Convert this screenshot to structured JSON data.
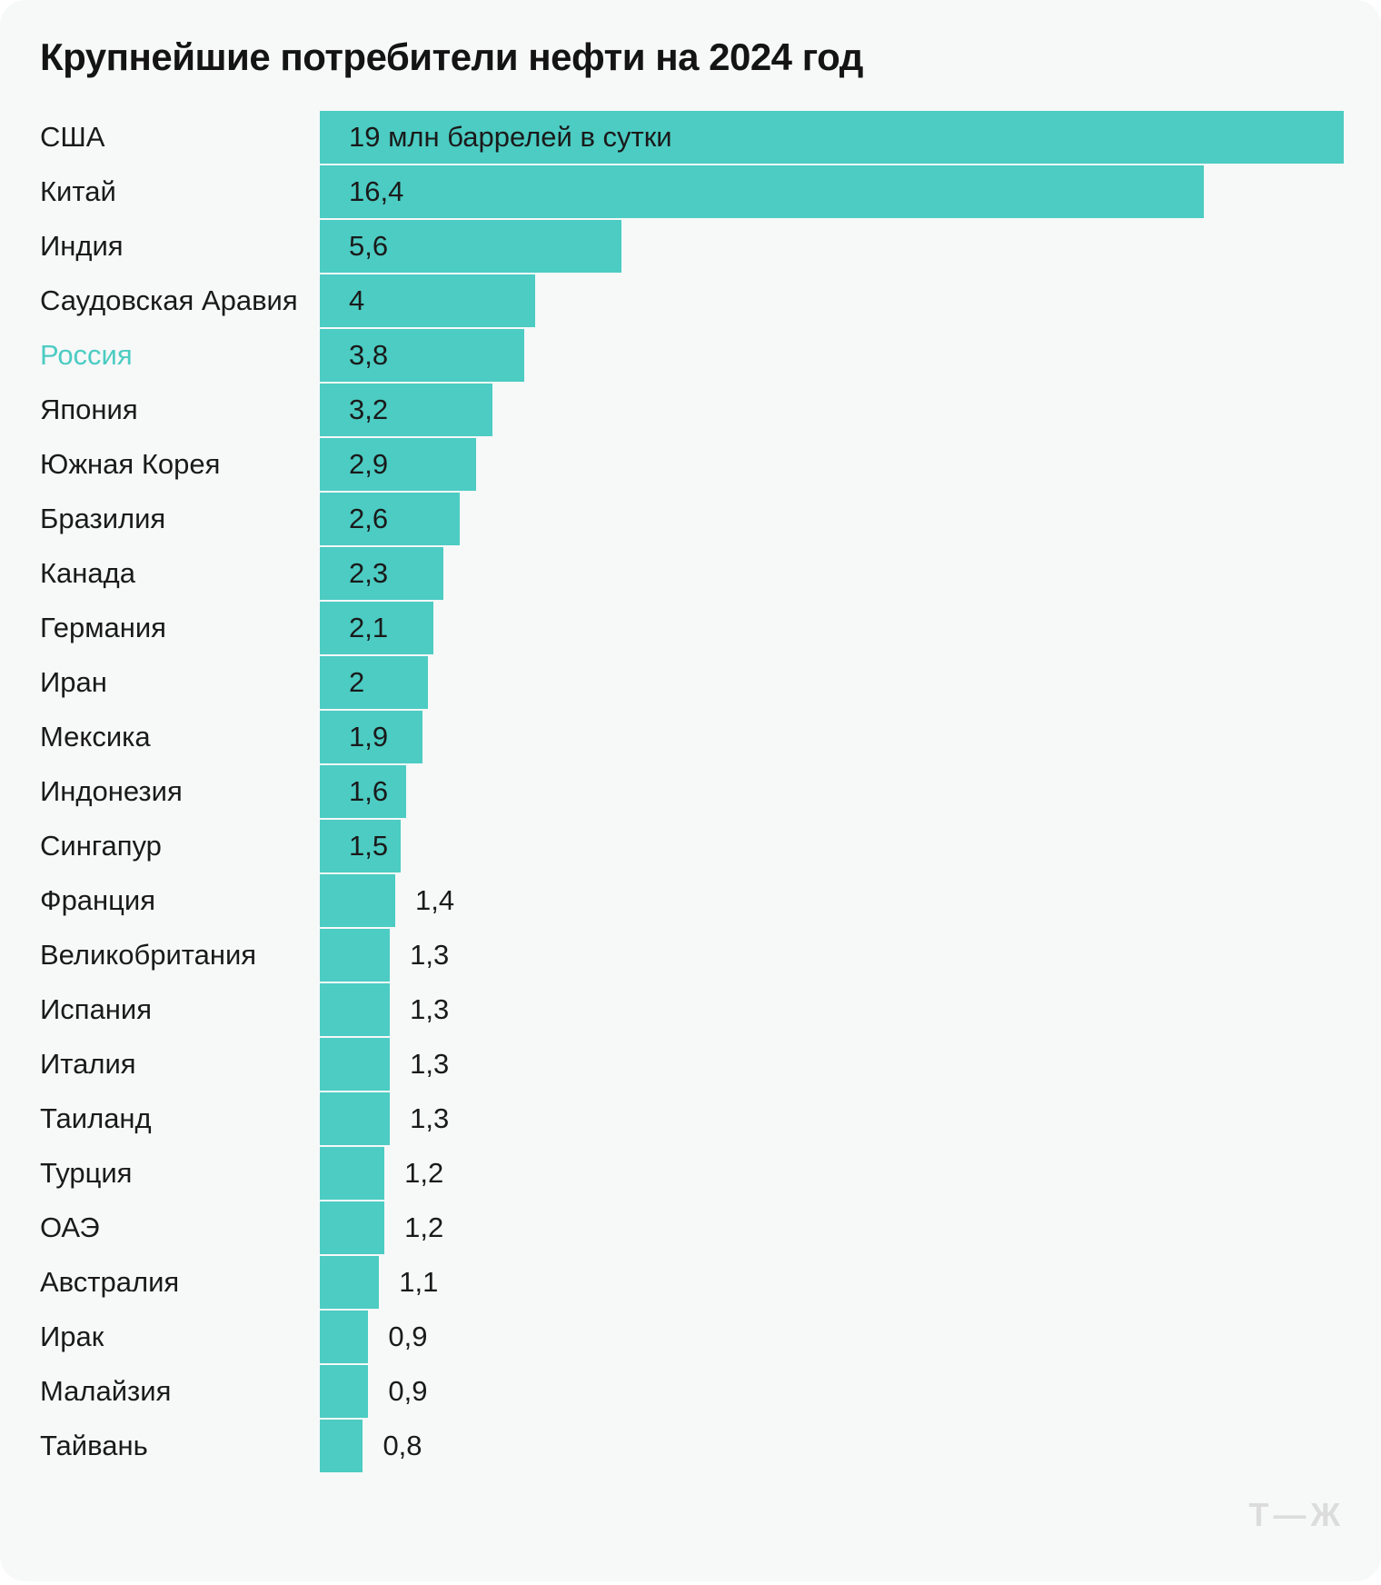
{
  "title": "Крупнейшие потребители нефти на 2024 год",
  "logo": "Т—Ж",
  "colors": {
    "accent": "#4CCCC3",
    "card_background": "#F7F8F8",
    "text": "#1A1A1A",
    "title": "#141414",
    "logo": "#DCDCDC"
  },
  "chart_data": {
    "type": "bar",
    "orientation": "horizontal",
    "title": "Крупнейшие потребители нефти на 2024 год",
    "unit": "млн баррелей в сутки",
    "xlim": [
      0,
      19
    ],
    "grid": false,
    "legend": false,
    "highlighted_category": "Россия",
    "inside_label_min_value": 1.5,
    "categories": [
      "США",
      "Китай",
      "Индия",
      "Саудовская Аравия",
      "Россия",
      "Япония",
      "Южная Корея",
      "Бразилия",
      "Канада",
      "Германия",
      "Иран",
      "Мексика",
      "Индонезия",
      "Сингапур",
      "Франция",
      "Великобритания",
      "Испания",
      "Италия",
      "Таиланд",
      "Турция",
      "ОАЭ",
      "Австралия",
      "Ирак",
      "Малайзия",
      "Тайвань"
    ],
    "values": [
      19,
      16.4,
      5.6,
      4,
      3.8,
      3.2,
      2.9,
      2.6,
      2.3,
      2.1,
      2,
      1.9,
      1.6,
      1.5,
      1.4,
      1.3,
      1.3,
      1.3,
      1.3,
      1.2,
      1.2,
      1.1,
      0.9,
      0.9,
      0.8
    ],
    "value_labels": [
      "19 млн баррелей в сутки",
      "16,4",
      "5,6",
      "4",
      "3,8",
      "3,2",
      "2,9",
      "2,6",
      "2,3",
      "2,1",
      "2",
      "1,9",
      "1,6",
      "1,5",
      "1,4",
      "1,3",
      "1,3",
      "1,3",
      "1,3",
      "1,2",
      "1,2",
      "1,1",
      "0,9",
      "0,9",
      "0,8"
    ]
  }
}
